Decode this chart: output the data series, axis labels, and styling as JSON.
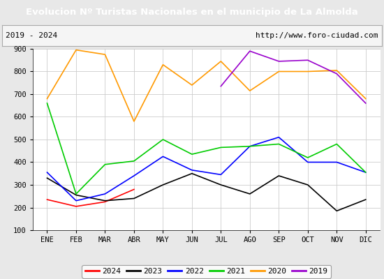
{
  "title": "Evolucion Nº Turistas Nacionales en el municipio de La Almolda",
  "subtitle_left": "2019 - 2024",
  "subtitle_right": "http://www.foro-ciudad.com",
  "title_bg_color": "#4472c4",
  "title_text_color": "#ffffff",
  "xlabel_ticks": [
    "ENE",
    "FEB",
    "MAR",
    "ABR",
    "MAY",
    "JUN",
    "JUL",
    "AGO",
    "SEP",
    "OCT",
    "NOV",
    "DIC"
  ],
  "ylim": [
    100,
    900
  ],
  "yticks": [
    100,
    200,
    300,
    400,
    500,
    600,
    700,
    800,
    900
  ],
  "series": {
    "2024": {
      "color": "#ff0000",
      "values": [
        235,
        205,
        225,
        280,
        null,
        null,
        null,
        null,
        null,
        null,
        null,
        null
      ]
    },
    "2023": {
      "color": "#000000",
      "values": [
        330,
        255,
        230,
        240,
        300,
        350,
        300,
        260,
        340,
        300,
        185,
        235
      ]
    },
    "2022": {
      "color": "#0000ff",
      "values": [
        355,
        230,
        260,
        340,
        425,
        365,
        345,
        470,
        510,
        400,
        400,
        355
      ]
    },
    "2021": {
      "color": "#00cc00",
      "values": [
        660,
        260,
        390,
        405,
        500,
        435,
        465,
        470,
        480,
        420,
        480,
        355
      ]
    },
    "2020": {
      "color": "#ff9900",
      "values": [
        680,
        895,
        875,
        580,
        830,
        740,
        845,
        715,
        800,
        800,
        805,
        680
      ]
    },
    "2019": {
      "color": "#9900cc",
      "values": [
        null,
        null,
        null,
        null,
        null,
        null,
        735,
        890,
        845,
        850,
        790,
        660
      ]
    }
  },
  "legend_order": [
    "2024",
    "2023",
    "2022",
    "2021",
    "2020",
    "2019"
  ],
  "background_color": "#e8e8e8",
  "plot_bg_color": "#f5f5f5",
  "inner_plot_bg": "#ffffff"
}
